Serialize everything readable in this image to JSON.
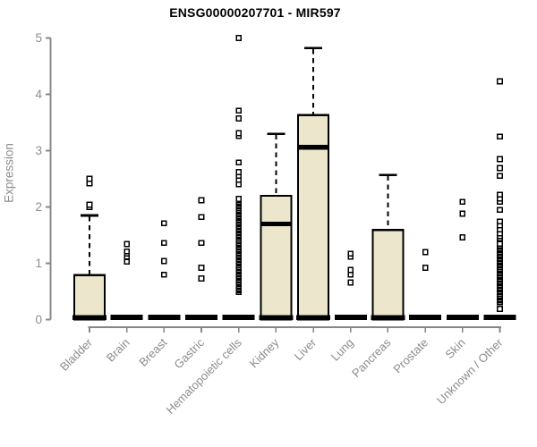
{
  "colors": {
    "box_fill": "#ece7cc",
    "box_stroke": "#000000",
    "median": "#000000",
    "outlier_stroke": "#000000",
    "axis": "#878787",
    "label": "#8c8c8c",
    "title": "#000000",
    "background": "#ffffff"
  },
  "chart_data": {
    "type": "boxplot",
    "title": "ENSG00000207701 - MIR597",
    "xlabel": "",
    "ylabel": "Expression",
    "ylim": [
      0,
      5
    ],
    "yticks": [
      0,
      1,
      2,
      3,
      4,
      5
    ],
    "grid": "off",
    "legend": "none",
    "categories": [
      "Bladder",
      "Brain",
      "Breast",
      "Gastric",
      "Hematopoietic cells",
      "Kidney",
      "Liver",
      "Lung",
      "Pancreas",
      "Prostate",
      "Skin",
      "Unknown / Other"
    ],
    "boxes": [
      {
        "category": "Bladder",
        "q1": 0,
        "median": 0,
        "q3": 0.79,
        "whisker_low": 0,
        "whisker_high": 1.85,
        "outliers": [
          2.0,
          2.04,
          2.42,
          2.5
        ],
        "outlier_bands": []
      },
      {
        "category": "Brain",
        "q1": 0,
        "median": 0,
        "q3": 0,
        "whisker_low": 0,
        "whisker_high": 0,
        "outliers": [
          1.03,
          1.12,
          1.17,
          1.21,
          1.34
        ],
        "outlier_bands": []
      },
      {
        "category": "Breast",
        "q1": 0,
        "median": 0,
        "q3": 0,
        "whisker_low": 0,
        "whisker_high": 0,
        "outliers": [
          0.8,
          1.04,
          1.36,
          1.71
        ],
        "outlier_bands": []
      },
      {
        "category": "Gastric",
        "q1": 0,
        "median": 0,
        "q3": 0,
        "whisker_low": 0,
        "whisker_high": 0,
        "outliers": [
          0.73,
          0.92,
          1.36,
          1.82,
          2.12
        ],
        "outlier_bands": []
      },
      {
        "category": "Hematopoietic cells",
        "q1": 0,
        "median": 0,
        "q3": 0,
        "whisker_low": 0,
        "whisker_high": 0,
        "outliers": [
          2.4,
          2.48,
          2.55,
          2.62,
          2.79,
          3.26,
          3.31,
          3.57,
          3.71,
          5.0
        ],
        "outlier_bands": [
          {
            "min": 0.49,
            "max": 2.16
          }
        ]
      },
      {
        "category": "Kidney",
        "q1": 0,
        "median": 1.7,
        "q3": 2.2,
        "whisker_low": 0,
        "whisker_high": 3.3,
        "outliers": [],
        "outlier_bands": []
      },
      {
        "category": "Liver",
        "q1": 0,
        "median": 3.06,
        "q3": 3.63,
        "whisker_low": 0,
        "whisker_high": 4.82,
        "outliers": [],
        "outlier_bands": []
      },
      {
        "category": "Lung",
        "q1": 0,
        "median": 0,
        "q3": 0,
        "whisker_low": 0,
        "whisker_high": 0,
        "outliers": [
          0.66,
          0.8,
          0.88,
          1.12,
          1.17
        ],
        "outlier_bands": []
      },
      {
        "category": "Pancreas",
        "q1": 0,
        "median": 0,
        "q3": 1.59,
        "whisker_low": 0,
        "whisker_high": 2.57,
        "outliers": [],
        "outlier_bands": []
      },
      {
        "category": "Prostate",
        "q1": 0,
        "median": 0,
        "q3": 0,
        "whisker_low": 0,
        "whisker_high": 0,
        "outliers": [
          0.92,
          1.2
        ],
        "outlier_bands": []
      },
      {
        "category": "Skin",
        "q1": 0,
        "median": 0,
        "q3": 0,
        "whisker_low": 0,
        "whisker_high": 0,
        "outliers": [
          1.46,
          1.88,
          2.09
        ],
        "outlier_bands": []
      },
      {
        "category": "Unknown / Other",
        "q1": 0,
        "median": 0,
        "q3": 0,
        "whisker_low": 0,
        "whisker_high": 0,
        "outliers": [
          0.19,
          1.44,
          1.48,
          1.53,
          1.6,
          1.67,
          1.74,
          1.95,
          2.09,
          2.15,
          2.22,
          2.55,
          2.69,
          2.85,
          3.25,
          4.23
        ],
        "outlier_bands": [
          {
            "min": 0.31,
            "max": 1.37
          }
        ]
      }
    ]
  }
}
